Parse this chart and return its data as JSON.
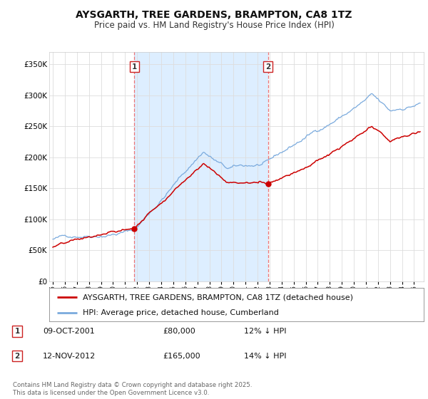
{
  "title": "AYSGARTH, TREE GARDENS, BRAMPTON, CA8 1TZ",
  "subtitle": "Price paid vs. HM Land Registry's House Price Index (HPI)",
  "ylabel_ticks": [
    "£0",
    "£50K",
    "£100K",
    "£150K",
    "£200K",
    "£250K",
    "£300K",
    "£350K"
  ],
  "ytick_values": [
    0,
    50000,
    100000,
    150000,
    200000,
    250000,
    300000,
    350000
  ],
  "ylim": [
    0,
    370000
  ],
  "xlim_start": 1994.7,
  "xlim_end": 2025.8,
  "marker1_x": 2001.77,
  "marker1_y": 80000,
  "marker1_label": "1",
  "marker2_x": 2012.87,
  "marker2_y": 165000,
  "marker2_label": "2",
  "red_line_color": "#cc0000",
  "blue_line_color": "#7aaadd",
  "blue_fill_color": "#ddeeff",
  "vline_color": "#ee6666",
  "background_color": "#ffffff",
  "grid_color": "#dddddd",
  "legend_label_red": "AYSGARTH, TREE GARDENS, BRAMPTON, CA8 1TZ (detached house)",
  "legend_label_blue": "HPI: Average price, detached house, Cumberland",
  "annotation1_date": "09-OCT-2001",
  "annotation1_price": "£80,000",
  "annotation1_hpi": "12% ↓ HPI",
  "annotation2_date": "12-NOV-2012",
  "annotation2_price": "£165,000",
  "annotation2_hpi": "14% ↓ HPI",
  "footer_text": "Contains HM Land Registry data © Crown copyright and database right 2025.\nThis data is licensed under the Open Government Licence v3.0.",
  "title_fontsize": 10,
  "subtitle_fontsize": 8.5,
  "tick_fontsize": 7.5,
  "legend_fontsize": 8,
  "annotation_fontsize": 8
}
